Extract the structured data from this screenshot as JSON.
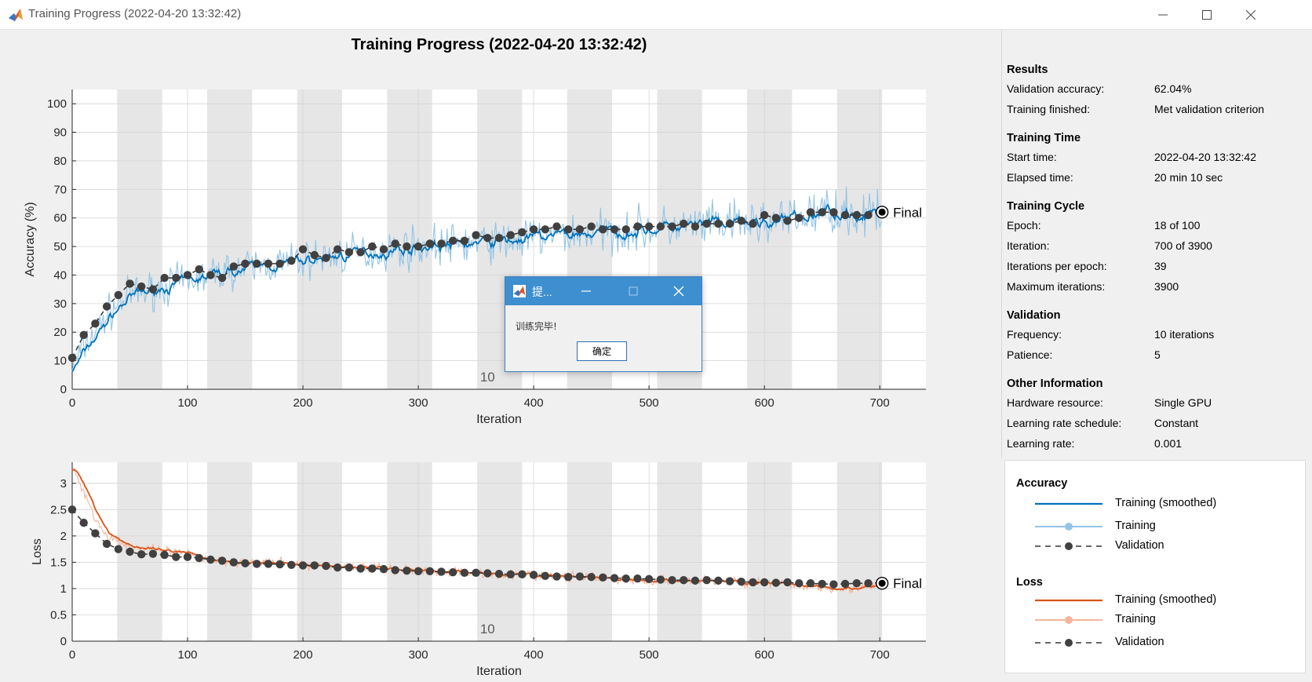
{
  "window": {
    "title": "Training Progress (2022-04-20 13:32:42)"
  },
  "figure": {
    "title": "Training Progress (2022-04-20 13:32:42)",
    "final_label": "Final",
    "epoch_marker": "10"
  },
  "results_panel": {
    "sections": [
      {
        "title": "Results",
        "rows": [
          {
            "key": "Validation accuracy:",
            "value": "62.04%"
          },
          {
            "key": "Training finished:",
            "value": "Met validation criterion"
          }
        ]
      },
      {
        "title": "Training Time",
        "rows": [
          {
            "key": "Start time:",
            "value": "2022-04-20 13:32:42"
          },
          {
            "key": "Elapsed time:",
            "value": "20 min 10 sec"
          }
        ]
      },
      {
        "title": "Training Cycle",
        "rows": [
          {
            "key": "Epoch:",
            "value": "18 of 100"
          },
          {
            "key": "Iteration:",
            "value": "700 of 3900"
          },
          {
            "key": "Iterations per epoch:",
            "value": "39"
          },
          {
            "key": "Maximum iterations:",
            "value": "3900"
          }
        ]
      },
      {
        "title": "Validation",
        "rows": [
          {
            "key": "Frequency:",
            "value": "10 iterations"
          },
          {
            "key": "Patience:",
            "value": "5"
          }
        ]
      },
      {
        "title": "Other Information",
        "rows": [
          {
            "key": "Hardware resource:",
            "value": "Single GPU"
          },
          {
            "key": "Learning rate schedule:",
            "value": "Constant"
          },
          {
            "key": "Learning rate:",
            "value": "0.001"
          }
        ]
      }
    ]
  },
  "legend": {
    "accuracy_title": "Accuracy",
    "accuracy_items": [
      {
        "label": "Training (smoothed)",
        "style": "smoothed",
        "color": "#0072bd"
      },
      {
        "label": "Training",
        "style": "raw",
        "color": "#93c4e6"
      },
      {
        "label": "Validation",
        "style": "validation",
        "color": "#404040"
      }
    ],
    "loss_title": "Loss",
    "loss_items": [
      {
        "label": "Training (smoothed)",
        "style": "smoothed",
        "color": "#d95319"
      },
      {
        "label": "Training",
        "style": "raw",
        "color": "#f4b59a"
      },
      {
        "label": "Validation",
        "style": "validation",
        "color": "#404040"
      }
    ]
  },
  "dialog": {
    "title": "提...",
    "message": "训练完毕!",
    "ok_label": "确定"
  },
  "colors": {
    "accuracy_smoothed": "#0072bd",
    "accuracy_raw": "#93c4e6",
    "loss_smoothed": "#d95319",
    "loss_raw": "#f4b59a",
    "validation": "#404040",
    "epoch_band": "#e6e6e6",
    "dialog_bar": "#3e8fd0"
  },
  "chart_data": [
    {
      "type": "line",
      "ylabel": "Accuracy (%)",
      "xlabel": "Iteration",
      "xlim": [
        0,
        740
      ],
      "ylim": [
        0,
        105
      ],
      "xticks": [
        0,
        100,
        200,
        300,
        400,
        500,
        600,
        700
      ],
      "yticks": [
        0,
        10,
        20,
        30,
        40,
        50,
        60,
        70,
        80,
        90,
        100
      ],
      "grid": true,
      "epoch_boundaries": [
        0,
        39,
        78,
        117,
        156,
        195,
        234,
        273,
        312,
        351,
        390,
        429,
        468,
        507,
        546,
        585,
        624,
        663,
        702
      ],
      "smoothed_control_points": {
        "x": [
          0,
          10,
          20,
          30,
          40,
          50,
          60,
          80,
          100,
          120,
          140,
          160,
          180,
          200,
          230,
          260,
          300,
          340,
          380,
          420,
          460,
          500,
          540,
          580,
          620,
          660,
          680,
          700
        ],
        "y": [
          8,
          15,
          20,
          26,
          30,
          33,
          34,
          36,
          38,
          40,
          42,
          43,
          44,
          45,
          47,
          48,
          50,
          51,
          52,
          54,
          55,
          56,
          57,
          58,
          59,
          63,
          61,
          61
        ]
      },
      "validation": {
        "x": [
          0,
          10,
          20,
          30,
          40,
          50,
          60,
          70,
          80,
          90,
          100,
          110,
          120,
          130,
          140,
          150,
          160,
          170,
          180,
          190,
          200,
          210,
          220,
          230,
          240,
          250,
          260,
          270,
          280,
          290,
          300,
          310,
          320,
          330,
          340,
          350,
          360,
          370,
          380,
          390,
          400,
          410,
          420,
          430,
          440,
          450,
          460,
          470,
          480,
          490,
          500,
          510,
          520,
          530,
          540,
          550,
          560,
          570,
          580,
          590,
          600,
          610,
          620,
          630,
          640,
          650,
          660,
          670,
          680,
          690,
          700
        ],
        "y": [
          11,
          19,
          23,
          29,
          33,
          37,
          36,
          35,
          39,
          39,
          40,
          42,
          40,
          39,
          43,
          44,
          44,
          44,
          44,
          45,
          49,
          47,
          46,
          49,
          48,
          48,
          50,
          49,
          51,
          50,
          50,
          51,
          51,
          52,
          52,
          54,
          53,
          53,
          54,
          55,
          56,
          56,
          57,
          56,
          56,
          57,
          56,
          56,
          56,
          57,
          57,
          57,
          57,
          58,
          57,
          58,
          58,
          58,
          59,
          58,
          61,
          60,
          59,
          60,
          62,
          62,
          62,
          61,
          61,
          61,
          62
        ]
      },
      "final": {
        "x": 702,
        "y": 62.04
      }
    },
    {
      "type": "line",
      "ylabel": "Loss",
      "xlabel": "Iteration",
      "xlim": [
        0,
        740
      ],
      "ylim": [
        0,
        3.4
      ],
      "xticks": [
        0,
        100,
        200,
        300,
        400,
        500,
        600,
        700
      ],
      "yticks": [
        0,
        0.5,
        1,
        1.5,
        2,
        2.5,
        3
      ],
      "ytick_labels": [
        "0",
        "0.5",
        "1",
        "1.5",
        "2",
        "2.5",
        "3"
      ],
      "grid": true,
      "smoothed_control_points": {
        "x": [
          0,
          5,
          10,
          15,
          20,
          25,
          30,
          40,
          50,
          60,
          80,
          100,
          120,
          150,
          200,
          250,
          300,
          350,
          400,
          450,
          500,
          550,
          600,
          640,
          660,
          680,
          700
        ],
        "y": [
          3.25,
          3.1,
          2.85,
          2.6,
          2.35,
          2.15,
          2.0,
          1.9,
          1.8,
          1.75,
          1.7,
          1.65,
          1.55,
          1.5,
          1.45,
          1.4,
          1.35,
          1.3,
          1.25,
          1.2,
          1.15,
          1.15,
          1.1,
          1.05,
          1.02,
          1.0,
          1.05
        ]
      },
      "validation": {
        "x": [
          0,
          10,
          20,
          30,
          40,
          50,
          60,
          70,
          80,
          90,
          100,
          110,
          120,
          130,
          140,
          150,
          160,
          170,
          180,
          190,
          200,
          210,
          220,
          230,
          240,
          250,
          260,
          270,
          280,
          290,
          300,
          310,
          320,
          330,
          340,
          350,
          360,
          370,
          380,
          390,
          400,
          410,
          420,
          430,
          440,
          450,
          460,
          470,
          480,
          490,
          500,
          510,
          520,
          530,
          540,
          550,
          560,
          570,
          580,
          590,
          600,
          610,
          620,
          630,
          640,
          650,
          660,
          670,
          680,
          690,
          700
        ],
        "y": [
          2.5,
          2.25,
          2.05,
          1.85,
          1.75,
          1.7,
          1.65,
          1.66,
          1.64,
          1.6,
          1.6,
          1.58,
          1.55,
          1.53,
          1.5,
          1.48,
          1.47,
          1.47,
          1.46,
          1.45,
          1.44,
          1.44,
          1.43,
          1.4,
          1.4,
          1.38,
          1.38,
          1.37,
          1.35,
          1.34,
          1.33,
          1.33,
          1.32,
          1.31,
          1.3,
          1.3,
          1.29,
          1.28,
          1.27,
          1.27,
          1.26,
          1.24,
          1.23,
          1.22,
          1.23,
          1.22,
          1.21,
          1.2,
          1.19,
          1.19,
          1.18,
          1.17,
          1.16,
          1.16,
          1.15,
          1.16,
          1.15,
          1.14,
          1.13,
          1.12,
          1.12,
          1.11,
          1.12,
          1.1,
          1.1,
          1.09,
          1.08,
          1.09,
          1.1,
          1.1,
          1.11
        ]
      },
      "final": {
        "x": 702,
        "y": 1.1
      }
    }
  ]
}
